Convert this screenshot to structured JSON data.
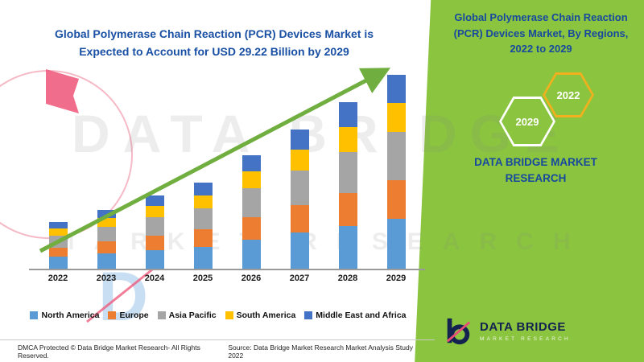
{
  "watermark": {
    "line1": "DATA BRIDGE",
    "line2": "MARKET RESEARCH"
  },
  "side_panel": {
    "title": "Global Polymerase Chain Reaction (PCR) Devices Market, By Regions, 2022 to 2029",
    "hexagons": [
      {
        "label": "2029"
      },
      {
        "label": "2022"
      }
    ],
    "brand_text": "DATA BRIDGE MARKET RESEARCH",
    "logo": {
      "name": "DATA BRIDGE",
      "subtitle": "MARKET RESEARCH"
    },
    "background_color": "#8BC53F",
    "title_color": "#17499E"
  },
  "footer": {
    "left": "DMCA Protected © Data Bridge Market Research- All Rights Reserved.",
    "source": "Source: Data Bridge Market Research Market Analysis Study 2022"
  },
  "chart_data": {
    "type": "bar",
    "stacked": true,
    "title": "Global Polymerase Chain Reaction (PCR) Devices Market is Expected to Account for USD 29.22 Billion by 2029",
    "unit": "USD Billion",
    "xlabel": "",
    "ylabel": "",
    "ylim": [
      0,
      30
    ],
    "grid": false,
    "legend_position": "bottom",
    "trend_arrow_color": "#6FAE3F",
    "categories": [
      "2022",
      "2023",
      "2024",
      "2025",
      "2026",
      "2027",
      "2028",
      "2029"
    ],
    "series": [
      {
        "name": "North America",
        "color": "#5B9BD5",
        "values": [
          1.8,
          2.3,
          2.8,
          3.3,
          4.4,
          5.4,
          6.4,
          7.5
        ]
      },
      {
        "name": "Europe",
        "color": "#ED7D31",
        "values": [
          1.4,
          1.8,
          2.2,
          2.6,
          3.4,
          4.2,
          5.0,
          5.8
        ]
      },
      {
        "name": "Asia Pacific",
        "color": "#A5A5A5",
        "values": [
          1.7,
          2.2,
          2.7,
          3.2,
          4.3,
          5.2,
          6.2,
          7.3
        ]
      },
      {
        "name": "South America",
        "color": "#FFC000",
        "values": [
          1.1,
          1.3,
          1.7,
          1.9,
          2.5,
          3.1,
          3.7,
          4.3
        ]
      },
      {
        "name": "Middle East and Africa",
        "color": "#4472C4",
        "values": [
          1.0,
          1.3,
          1.6,
          1.9,
          2.5,
          3.1,
          3.7,
          4.32
        ]
      }
    ],
    "totals": [
      7.0,
      8.9,
      11.0,
      12.9,
      17.1,
      21.0,
      25.0,
      29.22
    ]
  }
}
